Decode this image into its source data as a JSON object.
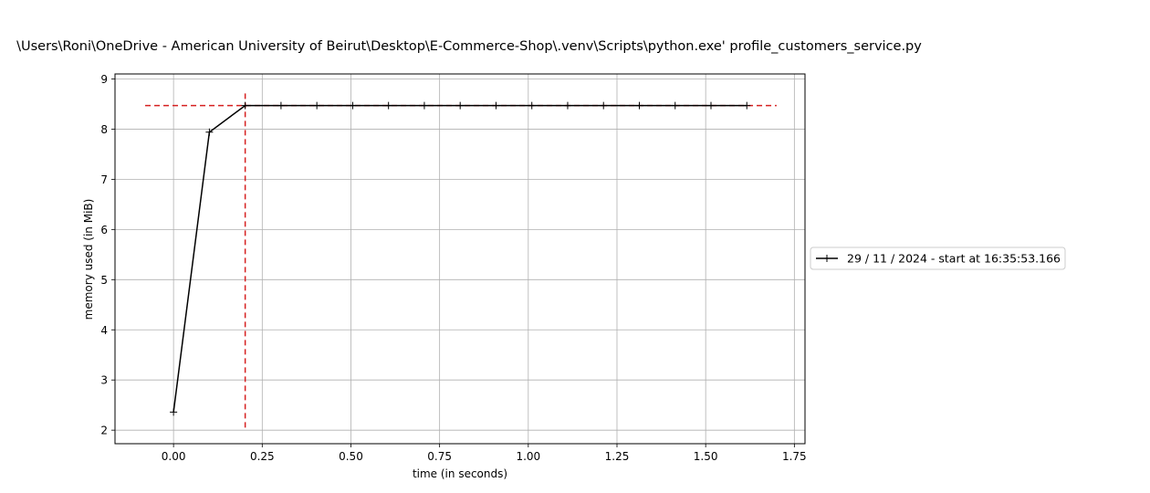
{
  "chart_data": {
    "type": "line",
    "title": "\\Users\\Roni\\OneDrive - American University of Beirut\\Desktop\\E-Commerce-Shop\\.venv\\Scripts\\python.exe' profile_customers_service.py",
    "xlabel": "time (in seconds)",
    "ylabel": "memory used (in MiB)",
    "xlim": [
      -0.165,
      1.78
    ],
    "ylim": [
      1.73,
      9.1
    ],
    "xticks": [
      0.0,
      0.25,
      0.5,
      0.75,
      1.0,
      1.25,
      1.5,
      1.75
    ],
    "xtick_labels": [
      "0.00",
      "0.25",
      "0.50",
      "0.75",
      "1.00",
      "1.25",
      "1.50",
      "1.75"
    ],
    "yticks": [
      2,
      3,
      4,
      5,
      6,
      7,
      8,
      9
    ],
    "ytick_labels": [
      "2",
      "3",
      "4",
      "5",
      "6",
      "7",
      "8",
      "9"
    ],
    "grid": true,
    "legend_position": "right, outside plot",
    "series": [
      {
        "name": "29 / 11 / 2024 - start at 16:35:53.166",
        "color": "#000000",
        "marker": "+",
        "x": [
          0.0,
          0.101,
          0.202,
          0.303,
          0.404,
          0.505,
          0.606,
          0.707,
          0.808,
          0.909,
          1.01,
          1.111,
          1.212,
          1.313,
          1.414,
          1.515,
          1.616
        ],
        "y": [
          2.36,
          7.94,
          8.47,
          8.47,
          8.47,
          8.47,
          8.47,
          8.47,
          8.47,
          8.47,
          8.47,
          8.47,
          8.47,
          8.47,
          8.47,
          8.47,
          8.47
        ]
      }
    ],
    "reference_lines": [
      {
        "orientation": "horizontal",
        "value": 8.47,
        "from": -0.08,
        "to": 1.7,
        "color": "#d62020",
        "style": "dashed"
      },
      {
        "orientation": "vertical",
        "value": 0.202,
        "from": 2.05,
        "to": 8.75,
        "color": "#d62020",
        "style": "dashed"
      }
    ]
  }
}
